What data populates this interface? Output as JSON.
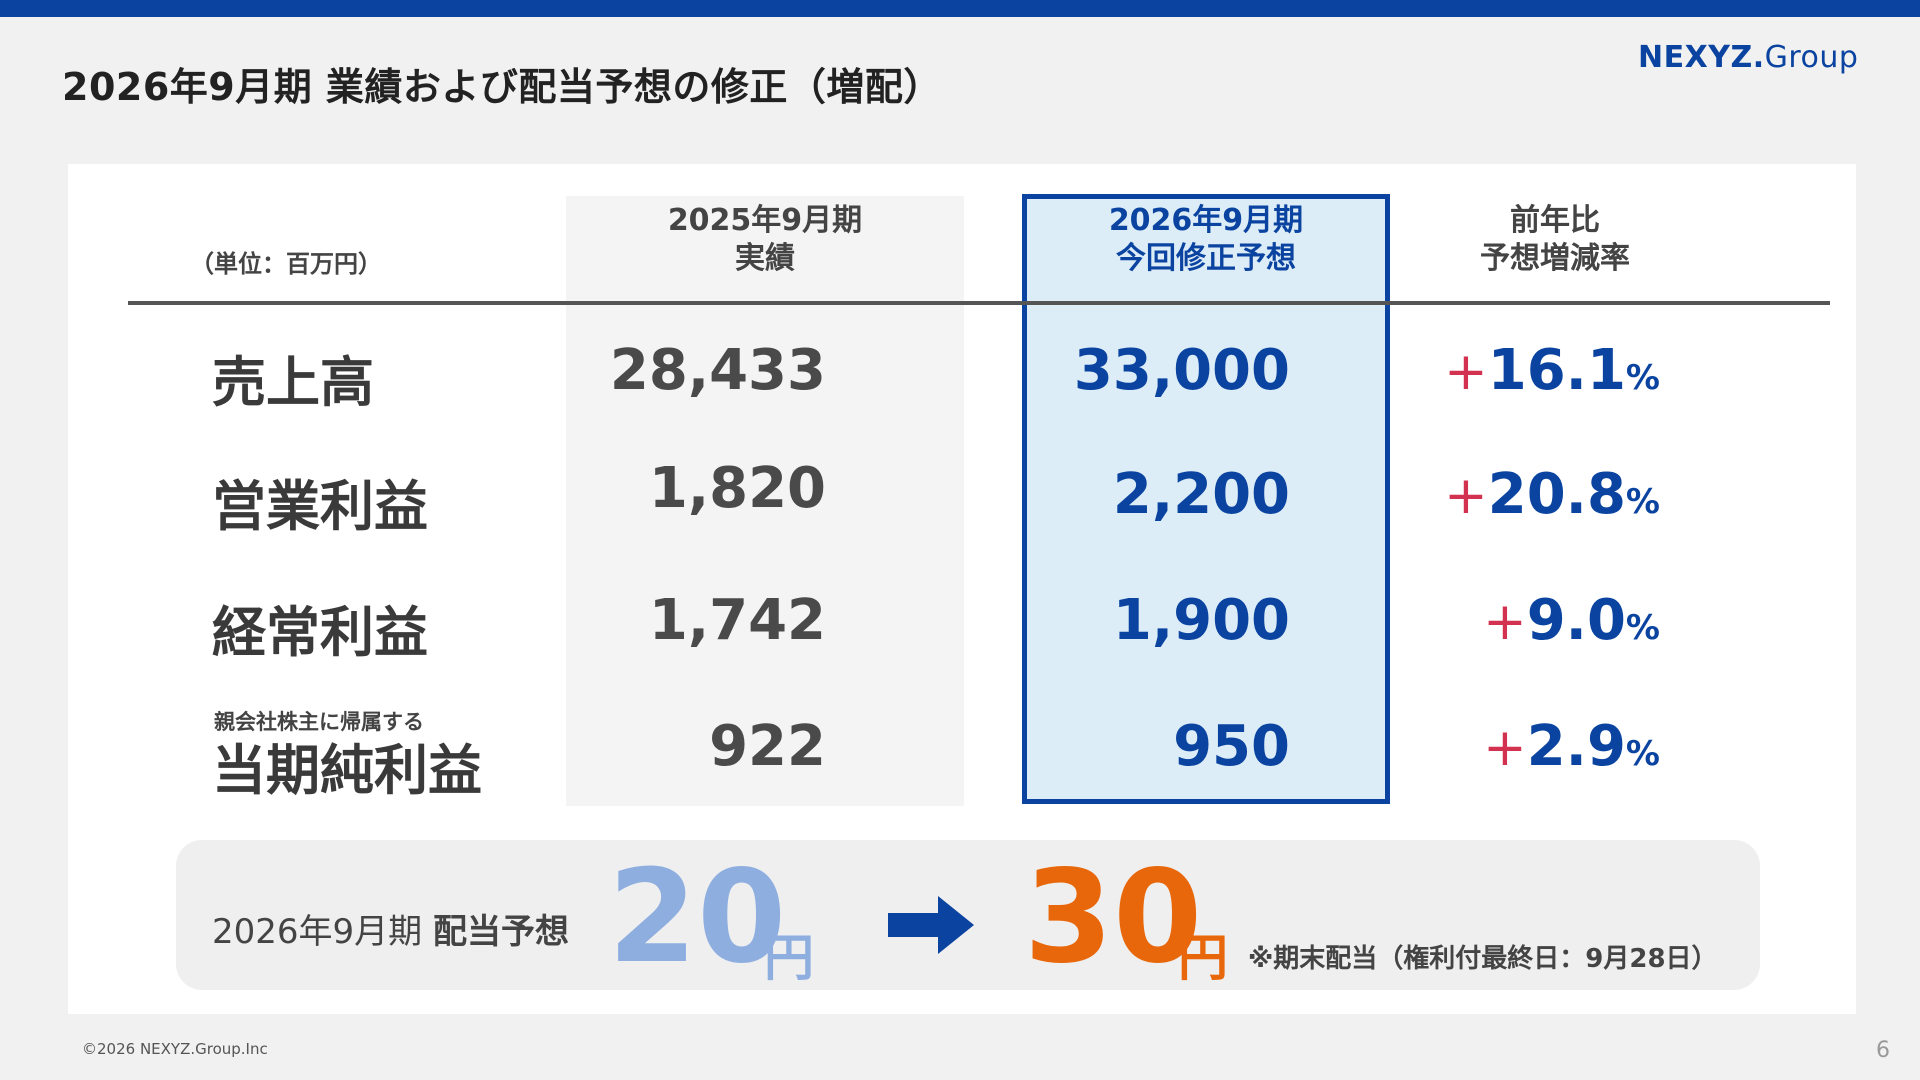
{
  "header": {
    "title": "2026年9月期 業績および配当予想の修正（増配）",
    "logo_main": "NEXYZ.",
    "logo_sub": "Group"
  },
  "table": {
    "unit": "（単位：百万円）",
    "columns": {
      "prev": [
        "2025年9月期",
        "実績"
      ],
      "cur": [
        "2026年9月期",
        "今回修正予想"
      ],
      "rate": [
        "前年比",
        "予想増減率"
      ]
    },
    "rows": [
      {
        "label": "売上高",
        "prev": "28,433",
        "cur": "33,000",
        "rate_sign": "+",
        "rate": "16.1",
        "rate_unit": "%"
      },
      {
        "label": "営業利益",
        "prev": "1,820",
        "cur": "2,200",
        "rate_sign": "+",
        "rate": "20.8",
        "rate_unit": "%"
      },
      {
        "label": "経常利益",
        "prev": "1,742",
        "cur": "1,900",
        "rate_sign": "+",
        "rate": "9.0",
        "rate_unit": "%"
      },
      {
        "label_small": "親会社株主に帰属する",
        "label": "当期純利益",
        "prev": "922",
        "cur": "950",
        "rate_sign": "+",
        "rate": "2.9",
        "rate_unit": "%"
      }
    ]
  },
  "dividend": {
    "label_period": "2026年9月期",
    "label_text": "配当予想",
    "old_value": "20",
    "new_value": "30",
    "unit": "円",
    "note": "※期末配当（権利付最終日：9月28日）"
  },
  "footer": {
    "copyright": "©2026 NEXYZ.Group.Inc",
    "page": "6"
  },
  "colors": {
    "brand_blue": "#0b44a0",
    "plus_red": "#d2314f",
    "orange": "#e8670a",
    "light_blue": "#8eaee0"
  }
}
